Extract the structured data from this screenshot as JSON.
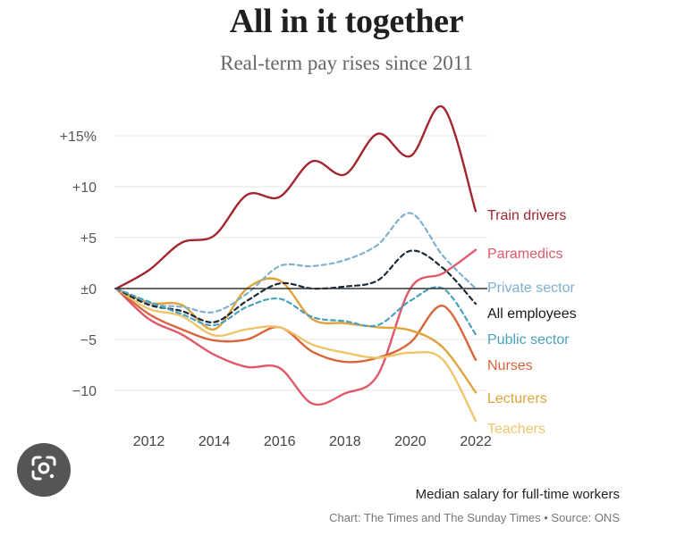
{
  "title": "All in it together",
  "subtitle": "Real-term pay rises since 2011",
  "footer": {
    "note": "Median salary for full-time workers",
    "credit": "Chart: The Times and The Sunday Times • Source: ONS"
  },
  "lens_button": {
    "icon": "google-lens-icon"
  },
  "chart_data": {
    "type": "line",
    "title": "All in it together",
    "subtitle": "Real-term pay rises since 2011",
    "x_ticks": [
      2012,
      2014,
      2016,
      2018,
      2020,
      2022
    ],
    "y_ticks": [
      {
        "value": 15,
        "label": "+15%"
      },
      {
        "value": 10,
        "label": "+10"
      },
      {
        "value": 5,
        "label": "+5"
      },
      {
        "value": 0,
        "label": "±0"
      },
      {
        "value": -5,
        "label": "−5"
      },
      {
        "value": -10,
        "label": "−10"
      }
    ],
    "xlim": [
      2011,
      2022
    ],
    "ylim": [
      -13,
      17
    ],
    "grid": true,
    "series": [
      {
        "name": "Train drivers",
        "color": "#a3262f",
        "dashed": false,
        "x": [
          2011,
          2012,
          2013,
          2014,
          2015,
          2016,
          2017,
          2018,
          2019,
          2020,
          2021,
          2022
        ],
        "y": [
          0,
          1.8,
          4.5,
          5.2,
          9.2,
          9.0,
          12.5,
          11.2,
          15.2,
          13.0,
          17.8,
          7.6
        ]
      },
      {
        "name": "Paramedics",
        "color": "#e0596a",
        "dashed": false,
        "x": [
          2011,
          2012,
          2013,
          2014,
          2015,
          2016,
          2017,
          2018,
          2019,
          2020,
          2021,
          2022
        ],
        "y": [
          0,
          -3.0,
          -4.5,
          -6.5,
          -7.7,
          -7.8,
          -11.3,
          -10.3,
          -8.5,
          0.0,
          1.5,
          3.8
        ]
      },
      {
        "name": "Private sector",
        "color": "#7fb0cf",
        "dashed": true,
        "x": [
          2011,
          2012,
          2013,
          2014,
          2015,
          2016,
          2017,
          2018,
          2019,
          2020,
          2021,
          2022
        ],
        "y": [
          0,
          -1.5,
          -1.8,
          -2.3,
          -0.5,
          2.2,
          2.2,
          2.8,
          4.3,
          7.4,
          3.2,
          0.0
        ]
      },
      {
        "name": "All employees",
        "color": "#1c2b3a",
        "dashed": true,
        "x": [
          2011,
          2012,
          2013,
          2014,
          2015,
          2016,
          2017,
          2018,
          2019,
          2020,
          2021,
          2022
        ],
        "y": [
          0,
          -1.6,
          -2.2,
          -3.3,
          -1.2,
          0.5,
          0.0,
          0.2,
          0.8,
          3.7,
          2.0,
          -1.5
        ]
      },
      {
        "name": "Public sector",
        "color": "#4aa0bf",
        "dashed": true,
        "x": [
          2011,
          2012,
          2013,
          2014,
          2015,
          2016,
          2017,
          2018,
          2019,
          2020,
          2021,
          2022
        ],
        "y": [
          0,
          -1.3,
          -2.5,
          -3.6,
          -1.8,
          -1.0,
          -2.8,
          -3.2,
          -3.6,
          -1.2,
          0.0,
          -4.5
        ]
      },
      {
        "name": "Nurses",
        "color": "#d8653c",
        "dashed": false,
        "x": [
          2011,
          2012,
          2013,
          2014,
          2015,
          2016,
          2017,
          2018,
          2019,
          2020,
          2021,
          2022
        ],
        "y": [
          0,
          -2.5,
          -4.0,
          -5.1,
          -5.0,
          -3.8,
          -6.2,
          -7.2,
          -6.8,
          -5.3,
          -1.7,
          -7.0
        ]
      },
      {
        "name": "Lecturers",
        "color": "#e0a33a",
        "dashed": false,
        "x": [
          2011,
          2012,
          2013,
          2014,
          2015,
          2016,
          2017,
          2018,
          2019,
          2020,
          2021,
          2022
        ],
        "y": [
          0,
          -1.4,
          -1.6,
          -4.0,
          0.0,
          0.8,
          -3.0,
          -3.4,
          -3.8,
          -4.1,
          -5.8,
          -10.2
        ]
      },
      {
        "name": "Teachers",
        "color": "#f0c46b",
        "dashed": false,
        "x": [
          2011,
          2012,
          2013,
          2014,
          2015,
          2016,
          2017,
          2018,
          2019,
          2020,
          2021,
          2022
        ],
        "y": [
          0,
          -2.0,
          -2.7,
          -4.6,
          -4.0,
          -3.8,
          -5.5,
          -6.3,
          -6.8,
          -6.3,
          -7.0,
          -13.0
        ]
      }
    ]
  }
}
